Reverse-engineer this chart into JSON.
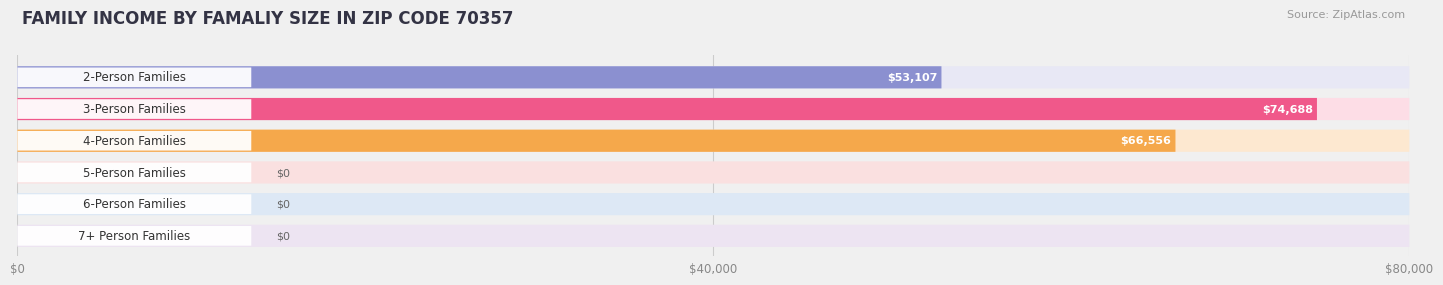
{
  "title": "FAMILY INCOME BY FAMALIY SIZE IN ZIP CODE 70357",
  "source": "Source: ZipAtlas.com",
  "categories": [
    "2-Person Families",
    "3-Person Families",
    "4-Person Families",
    "5-Person Families",
    "6-Person Families",
    "7+ Person Families"
  ],
  "values": [
    53107,
    74688,
    66556,
    0,
    0,
    0
  ],
  "bar_colors": [
    "#8B90D0",
    "#F0588A",
    "#F5A84B",
    "#F4A0A0",
    "#9BBDE0",
    "#C8A8D8"
  ],
  "bar_bg_colors": [
    "#E8E8F5",
    "#FDDDE6",
    "#FDE8D0",
    "#FAE0E0",
    "#DDE8F5",
    "#EDE4F2"
  ],
  "xlim": [
    0,
    80000
  ],
  "xticks": [
    0,
    40000,
    80000
  ],
  "xtick_labels": [
    "$0",
    "$40,000",
    "$80,000"
  ],
  "value_labels": [
    "$53,107",
    "$74,688",
    "$66,556",
    "$0",
    "$0",
    "$0"
  ],
  "title_fontsize": 12,
  "source_fontsize": 8,
  "label_fontsize": 8.5,
  "value_fontsize": 8,
  "background_color": "#f0f0f0"
}
